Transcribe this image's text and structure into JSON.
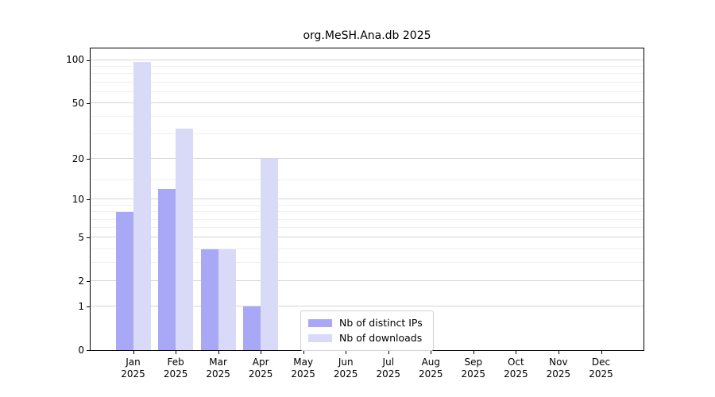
{
  "chart_data": {
    "type": "bar",
    "title": "org.MeSH.Ana.db 2025",
    "categories": [
      "Jan",
      "Feb",
      "Mar",
      "Apr",
      "May",
      "Jun",
      "Jul",
      "Aug",
      "Sep",
      "Oct",
      "Nov",
      "Dec"
    ],
    "category_year": "2025",
    "series": [
      {
        "name": "Nb of distinct IPs",
        "color": "#a8a8f7",
        "values": [
          8,
          12,
          4,
          1,
          0,
          0,
          0,
          0,
          0,
          0,
          0,
          0
        ]
      },
      {
        "name": "Nb of downloads",
        "color": "#d9d9f8",
        "values": [
          97,
          33,
          4,
          20,
          0,
          0,
          0,
          0,
          0,
          0,
          0,
          0
        ]
      }
    ],
    "yscale": "log1p",
    "ylim": [
      0,
      121
    ],
    "y_ticks": [
      0,
      1,
      2,
      5,
      10,
      20,
      50,
      100
    ],
    "y_minor_gridlines": [
      3,
      4,
      6,
      7,
      8,
      9,
      14,
      30,
      40,
      60,
      70,
      80,
      90
    ],
    "grid": "on",
    "xlabel": "",
    "ylabel": "",
    "legend_position": "bottom-center"
  },
  "legend": {
    "items": [
      {
        "label": "Nb of distinct IPs"
      },
      {
        "label": "Nb of downloads"
      }
    ]
  }
}
